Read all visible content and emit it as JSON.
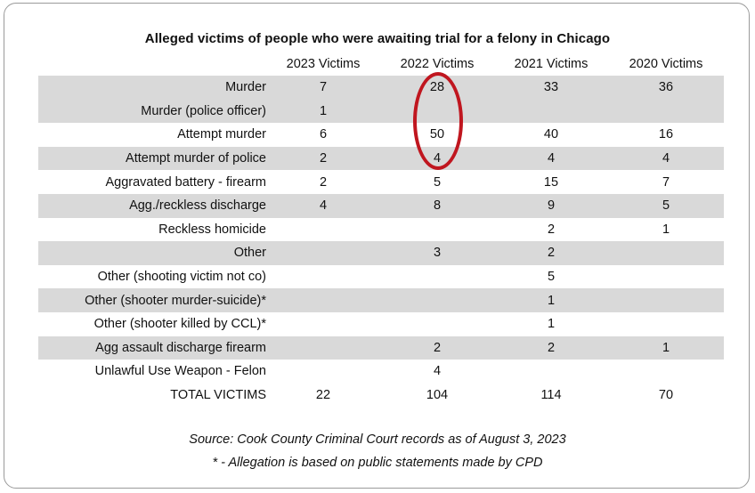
{
  "chart_data": {
    "type": "table",
    "title": "Alleged victims of people who were awaiting trial for a felony in Chicago",
    "columns": [
      "2023 Victims",
      "2022 Victims",
      "2021 Victims",
      "2020 Victims"
    ],
    "rows": [
      {
        "label": "Murder",
        "values": [
          "7",
          "28",
          "33",
          "36"
        ],
        "shaded": true
      },
      {
        "label": "Murder (police officer)",
        "values": [
          "1",
          "",
          "",
          ""
        ],
        "shaded": true
      },
      {
        "label": "Attempt murder",
        "values": [
          "6",
          "50",
          "40",
          "16"
        ],
        "shaded": false
      },
      {
        "label": "Attempt murder of police",
        "values": [
          "2",
          "4",
          "4",
          "4"
        ],
        "shaded": true
      },
      {
        "label": "Aggravated battery - firearm",
        "values": [
          "2",
          "5",
          "15",
          "7"
        ],
        "shaded": false
      },
      {
        "label": "Agg./reckless discharge",
        "values": [
          "4",
          "8",
          "9",
          "5"
        ],
        "shaded": true
      },
      {
        "label": "Reckless homicide",
        "values": [
          "",
          "",
          "2",
          "1"
        ],
        "shaded": false
      },
      {
        "label": "Other",
        "values": [
          "",
          "3",
          "2",
          ""
        ],
        "shaded": true
      },
      {
        "label": "Other (shooting victim not co)",
        "values": [
          "",
          "",
          "5",
          ""
        ],
        "shaded": false
      },
      {
        "label": "Other (shooter murder-suicide)*",
        "values": [
          "",
          "",
          "1",
          ""
        ],
        "shaded": true
      },
      {
        "label": "Other (shooter killed by CCL)*",
        "values": [
          "",
          "",
          "1",
          ""
        ],
        "shaded": false
      },
      {
        "label": "Agg assault discharge firearm",
        "values": [
          "",
          "2",
          "2",
          "1"
        ],
        "shaded": true
      },
      {
        "label": "Unlawful Use Weapon - Felon",
        "values": [
          "",
          "4",
          "",
          ""
        ],
        "shaded": false
      }
    ],
    "total": {
      "label": "TOTAL VICTIMS",
      "values": [
        "22",
        "104",
        "114",
        "70"
      ]
    },
    "annotation": {
      "type": "circle",
      "color": "#c0161f",
      "column": "2022 Victims",
      "rows": [
        "Murder",
        "Murder (police officer)",
        "Attempt murder",
        "Attempt murder of police"
      ]
    }
  },
  "notes": {
    "source": "Source: Cook County Criminal Court records as of August 3, 2023",
    "footnote": "* - Allegation is based on public statements made by CPD"
  },
  "colors": {
    "shaded_row": "#d9d9d9",
    "highlight": "#c0161f",
    "frame_border": "#9a9a9a"
  }
}
